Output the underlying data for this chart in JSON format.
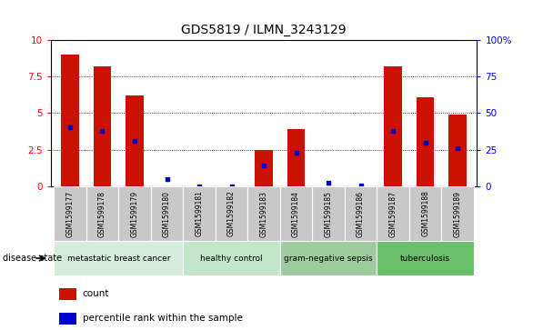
{
  "title": "GDS5819 / ILMN_3243129",
  "samples": [
    "GSM1599177",
    "GSM1599178",
    "GSM1599179",
    "GSM1599180",
    "GSM1599181",
    "GSM1599182",
    "GSM1599183",
    "GSM1599184",
    "GSM1599185",
    "GSM1599186",
    "GSM1599187",
    "GSM1599188",
    "GSM1599189"
  ],
  "red_values": [
    9.0,
    8.2,
    6.2,
    0.0,
    0.0,
    0.0,
    2.5,
    3.9,
    0.0,
    0.0,
    8.2,
    6.1,
    4.9
  ],
  "blue_values": [
    40,
    38,
    31,
    5,
    0,
    0.2,
    14,
    23,
    2.3,
    0.5,
    38,
    30,
    26
  ],
  "ylim_left": [
    0,
    10
  ],
  "ylim_right": [
    0,
    100
  ],
  "yticks_left": [
    0,
    2.5,
    5.0,
    7.5,
    10
  ],
  "yticks_right": [
    0,
    25,
    50,
    75,
    100
  ],
  "ytick_labels_left": [
    "0",
    "2.5",
    "5",
    "7.5",
    "10"
  ],
  "ytick_labels_right": [
    "0",
    "25",
    "50",
    "75",
    "100%"
  ],
  "disease_groups": [
    {
      "label": "metastatic breast cancer",
      "start": 0,
      "end": 4,
      "color": "#d4edda"
    },
    {
      "label": "healthy control",
      "start": 4,
      "end": 7,
      "color": "#c3e6cb"
    },
    {
      "label": "gram-negative sepsis",
      "start": 7,
      "end": 10,
      "color": "#9fcc9f"
    },
    {
      "label": "tuberculosis",
      "start": 10,
      "end": 13,
      "color": "#6abf6a"
    }
  ],
  "bar_color": "#cc1100",
  "dot_color": "#0000cc",
  "disease_label": "disease state",
  "legend_count": "count",
  "legend_percentile": "percentile rank within the sample",
  "bar_width": 0.55,
  "tick_bg": "#c8c8c8",
  "plot_bg": "#ffffff"
}
